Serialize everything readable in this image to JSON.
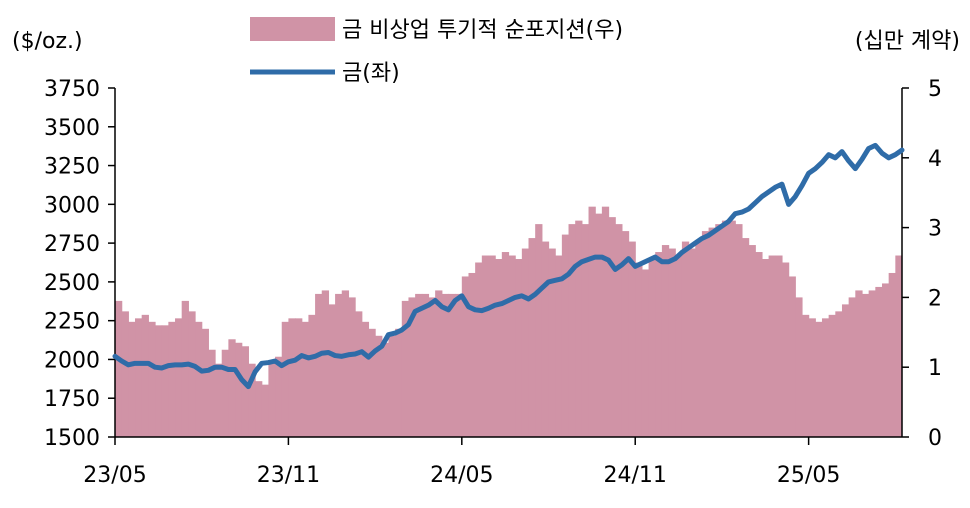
{
  "chart_data": {
    "type": "bar+line",
    "left_unit": "($/oz.)",
    "right_unit": "(십만 계약)",
    "legend": [
      {
        "label": "금 비상업 투기적 순포지션(우)",
        "kind": "area",
        "color": "#d093a6"
      },
      {
        "label": "금(좌)",
        "kind": "line",
        "color": "#2f6ca8"
      }
    ],
    "y_left": {
      "min": 1500,
      "max": 3750,
      "ticks": [
        "1500",
        "1750",
        "2000",
        "2250",
        "2500",
        "2750",
        "3000",
        "3250",
        "3500",
        "3750"
      ]
    },
    "y_right": {
      "min": 0,
      "max": 5,
      "ticks": [
        "0",
        "1",
        "2",
        "3",
        "4",
        "5"
      ]
    },
    "x_labels": [
      {
        "label": "23/05",
        "week": 0
      },
      {
        "label": "23/11",
        "week": 26
      },
      {
        "label": "24/05",
        "week": 52
      },
      {
        "label": "24/11",
        "week": 78
      },
      {
        "label": "25/05",
        "week": 104
      }
    ],
    "positions": [
      1.95,
      1.8,
      1.65,
      1.7,
      1.75,
      1.65,
      1.6,
      1.6,
      1.65,
      1.7,
      1.95,
      1.8,
      1.65,
      1.55,
      1.25,
      1.05,
      1.25,
      1.4,
      1.35,
      1.3,
      1.05,
      0.8,
      0.75,
      1.1,
      1.15,
      1.65,
      1.7,
      1.7,
      1.65,
      1.75,
      2.05,
      2.1,
      1.9,
      2.05,
      2.1,
      2.0,
      1.8,
      1.65,
      1.55,
      1.45,
      1.35,
      1.45,
      1.55,
      1.95,
      2.0,
      2.05,
      2.05,
      2.0,
      2.1,
      2.05,
      2.05,
      2.05,
      2.3,
      2.35,
      2.5,
      2.6,
      2.6,
      2.55,
      2.65,
      2.6,
      2.55,
      2.7,
      2.85,
      3.05,
      2.8,
      2.7,
      2.6,
      2.9,
      3.05,
      3.1,
      3.05,
      3.3,
      3.2,
      3.3,
      3.15,
      3.05,
      2.95,
      2.8,
      2.5,
      2.4,
      2.55,
      2.65,
      2.75,
      2.7,
      2.6,
      2.8,
      2.7,
      2.8,
      2.95,
      3.0,
      3.05,
      3.1,
      3.1,
      3.05,
      2.85,
      2.75,
      2.65,
      2.55,
      2.6,
      2.6,
      2.5,
      2.3,
      2.0,
      1.75,
      1.7,
      1.65,
      1.7,
      1.75,
      1.8,
      1.9,
      2.0,
      2.1,
      2.05,
      2.1,
      2.15,
      2.2,
      2.35,
      2.6
    ],
    "gold": [
      2020,
      1990,
      1965,
      1975,
      1975,
      1975,
      1950,
      1945,
      1960,
      1965,
      1965,
      1970,
      1955,
      1925,
      1930,
      1950,
      1950,
      1935,
      1935,
      1870,
      1825,
      1920,
      1975,
      1980,
      1990,
      1960,
      1985,
      1995,
      2025,
      2010,
      2020,
      2040,
      2045,
      2025,
      2020,
      2030,
      2035,
      2050,
      2015,
      2055,
      2085,
      2160,
      2170,
      2190,
      2225,
      2310,
      2330,
      2350,
      2380,
      2340,
      2320,
      2380,
      2410,
      2340,
      2320,
      2315,
      2330,
      2350,
      2360,
      2380,
      2400,
      2410,
      2390,
      2420,
      2460,
      2500,
      2510,
      2520,
      2550,
      2600,
      2630,
      2645,
      2660,
      2660,
      2640,
      2580,
      2610,
      2650,
      2600,
      2620,
      2640,
      2660,
      2630,
      2630,
      2650,
      2690,
      2720,
      2750,
      2780,
      2800,
      2830,
      2860,
      2890,
      2940,
      2950,
      2970,
      3010,
      3050,
      3080,
      3110,
      3130,
      3000,
      3050,
      3120,
      3200,
      3230,
      3270,
      3320,
      3300,
      3340,
      3280,
      3230,
      3290,
      3360,
      3380,
      3330,
      3300,
      3320,
      3350
    ]
  }
}
